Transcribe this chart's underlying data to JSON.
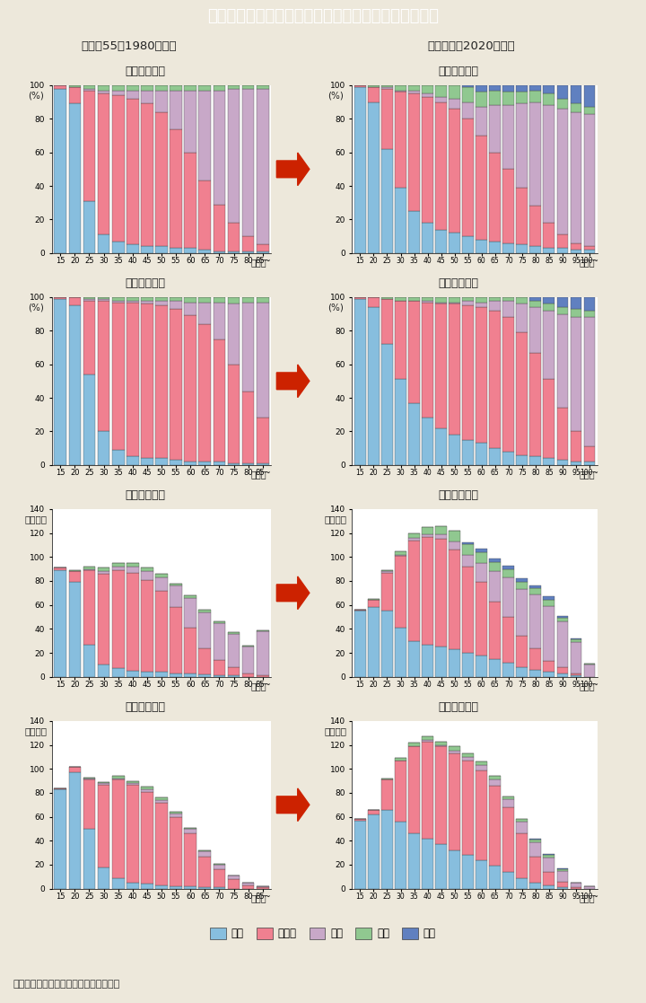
{
  "title": "特－３図　配偶関係別の人口構成比（男女別）の変化",
  "title_bg": "#00b8d0",
  "title_color": "white",
  "subtitle_left": "＜昭和55（1980）年＞",
  "subtitle_right": "＜令和２（2020）年＞",
  "bg_color": "#ede8db",
  "note": "（備考）総務省「国勢調査」より作成。",
  "colors": {
    "未婚": "#87BEDE",
    "有配偶": "#F08090",
    "死別": "#C8A8C8",
    "離別": "#90C890",
    "不詳": "#6080C0"
  },
  "ages_1980": [
    "15",
    "20",
    "25",
    "30",
    "35",
    "40",
    "45",
    "50",
    "55",
    "60",
    "65",
    "70",
    "75",
    "80",
    "85~"
  ],
  "ages_2020": [
    "15",
    "20",
    "25",
    "30",
    "35",
    "40",
    "45",
    "50",
    "55",
    "60",
    "65",
    "70",
    "75",
    "80",
    "85",
    "90",
    "95",
    "100~"
  ],
  "pct_female_1980": {
    "未婚": [
      98,
      89,
      31,
      11,
      7,
      5,
      4,
      4,
      3,
      3,
      2,
      1,
      1,
      1,
      1
    ],
    "有配偶": [
      2,
      10,
      66,
      84,
      87,
      87,
      85,
      80,
      71,
      57,
      41,
      28,
      17,
      9,
      4
    ],
    "死別": [
      0,
      0,
      1,
      2,
      3,
      5,
      8,
      13,
      23,
      37,
      54,
      68,
      80,
      88,
      93
    ],
    "離別": [
      0,
      1,
      2,
      3,
      3,
      3,
      3,
      3,
      3,
      3,
      3,
      3,
      2,
      2,
      2
    ],
    "不詳": [
      0,
      0,
      0,
      0,
      0,
      0,
      0,
      0,
      0,
      0,
      0,
      0,
      0,
      0,
      0
    ]
  },
  "pct_male_1980": {
    "未婚": [
      99,
      95,
      54,
      20,
      9,
      5,
      4,
      4,
      3,
      2,
      2,
      2,
      1,
      1,
      1
    ],
    "有配偶": [
      1,
      5,
      44,
      78,
      88,
      92,
      92,
      91,
      90,
      87,
      82,
      73,
      59,
      43,
      27
    ],
    "死別": [
      0,
      0,
      1,
      1,
      1,
      1,
      2,
      3,
      5,
      8,
      13,
      22,
      36,
      53,
      69
    ],
    "離別": [
      0,
      0,
      1,
      1,
      2,
      2,
      2,
      2,
      2,
      3,
      3,
      3,
      4,
      3,
      3
    ],
    "不詳": [
      0,
      0,
      0,
      0,
      0,
      0,
      0,
      0,
      0,
      0,
      0,
      0,
      0,
      0,
      0
    ]
  },
  "pct_female_2020": {
    "未婚": [
      99,
      90,
      62,
      39,
      25,
      18,
      14,
      12,
      10,
      8,
      7,
      6,
      5,
      4,
      3,
      3,
      2,
      2
    ],
    "有配偶": [
      1,
      9,
      36,
      57,
      70,
      75,
      76,
      74,
      70,
      62,
      53,
      44,
      34,
      24,
      15,
      8,
      4,
      2
    ],
    "死別": [
      0,
      0,
      1,
      1,
      2,
      2,
      3,
      6,
      10,
      17,
      28,
      38,
      50,
      62,
      70,
      75,
      78,
      79
    ],
    "離別": [
      0,
      1,
      1,
      3,
      3,
      5,
      7,
      8,
      9,
      9,
      9,
      8,
      7,
      7,
      7,
      6,
      5,
      4
    ],
    "不詳": [
      0,
      0,
      0,
      0,
      0,
      0,
      0,
      0,
      1,
      4,
      3,
      4,
      4,
      3,
      5,
      8,
      11,
      13
    ]
  },
  "pct_male_2020": {
    "未婚": [
      99,
      94,
      72,
      51,
      37,
      28,
      22,
      18,
      15,
      13,
      10,
      8,
      6,
      5,
      4,
      3,
      2,
      2
    ],
    "有配偶": [
      1,
      6,
      27,
      47,
      61,
      69,
      74,
      78,
      80,
      81,
      82,
      80,
      73,
      62,
      47,
      31,
      18,
      9
    ],
    "死別": [
      0,
      0,
      0,
      0,
      0,
      1,
      1,
      1,
      3,
      3,
      6,
      10,
      17,
      27,
      41,
      56,
      68,
      77
    ],
    "離別": [
      0,
      0,
      1,
      2,
      2,
      2,
      3,
      3,
      2,
      3,
      2,
      2,
      4,
      4,
      4,
      4,
      5,
      4
    ],
    "不詳": [
      0,
      0,
      0,
      0,
      0,
      0,
      0,
      0,
      0,
      0,
      0,
      0,
      0,
      2,
      4,
      6,
      7,
      8
    ]
  },
  "num_female_1980": {
    "未婚": [
      89,
      79,
      27,
      10,
      7,
      5,
      4,
      4,
      3,
      3,
      2,
      1,
      1,
      0,
      0
    ],
    "有配偶": [
      2,
      9,
      62,
      76,
      82,
      82,
      77,
      68,
      55,
      38,
      22,
      13,
      7,
      3,
      1
    ],
    "死別": [
      0,
      0,
      1,
      2,
      3,
      5,
      7,
      11,
      18,
      25,
      30,
      31,
      28,
      22,
      37
    ],
    "離別": [
      0,
      1,
      2,
      3,
      3,
      3,
      3,
      3,
      2,
      2,
      2,
      1,
      1,
      1,
      1
    ],
    "不詳": [
      0,
      0,
      0,
      0,
      0,
      0,
      0,
      0,
      0,
      0,
      0,
      0,
      0,
      0,
      0
    ]
  },
  "num_male_1980": {
    "未婚": [
      83,
      97,
      50,
      18,
      9,
      5,
      4,
      3,
      2,
      2,
      1,
      1,
      0,
      0,
      0
    ],
    "有配偶": [
      1,
      5,
      41,
      69,
      82,
      82,
      77,
      69,
      58,
      44,
      26,
      15,
      8,
      3,
      1
    ],
    "死別": [
      0,
      0,
      1,
      1,
      1,
      1,
      2,
      2,
      3,
      4,
      4,
      4,
      3,
      2,
      1
    ],
    "離別": [
      0,
      0,
      1,
      1,
      2,
      2,
      2,
      2,
      1,
      1,
      1,
      1,
      0,
      0,
      0
    ],
    "不詳": [
      0,
      0,
      0,
      0,
      0,
      0,
      0,
      0,
      0,
      0,
      0,
      0,
      0,
      0,
      0
    ]
  },
  "num_female_2020": {
    "未婚": [
      55,
      58,
      55,
      41,
      30,
      27,
      25,
      23,
      20,
      18,
      15,
      12,
      8,
      6,
      4,
      3,
      1,
      0
    ],
    "有配偶": [
      1,
      6,
      32,
      60,
      84,
      90,
      90,
      83,
      72,
      61,
      48,
      38,
      26,
      18,
      9,
      5,
      2,
      0
    ],
    "死別": [
      0,
      0,
      1,
      1,
      2,
      2,
      4,
      7,
      10,
      16,
      25,
      33,
      39,
      45,
      46,
      38,
      26,
      10
    ],
    "離別": [
      0,
      1,
      1,
      3,
      4,
      6,
      7,
      9,
      9,
      9,
      8,
      7,
      6,
      5,
      5,
      3,
      2,
      1
    ],
    "不詳": [
      0,
      0,
      0,
      0,
      0,
      0,
      0,
      0,
      1,
      3,
      3,
      3,
      3,
      2,
      3,
      2,
      1,
      0
    ]
  },
  "num_male_2020": {
    "未婚": [
      57,
      62,
      66,
      56,
      46,
      42,
      37,
      32,
      28,
      24,
      19,
      14,
      9,
      5,
      3,
      1,
      0,
      0
    ],
    "有配偶": [
      1,
      4,
      25,
      51,
      73,
      81,
      82,
      81,
      79,
      75,
      67,
      54,
      37,
      22,
      11,
      5,
      1,
      0
    ],
    "死別": [
      0,
      0,
      0,
      0,
      0,
      1,
      1,
      2,
      3,
      4,
      5,
      7,
      10,
      12,
      12,
      9,
      4,
      2
    ],
    "離別": [
      0,
      0,
      1,
      2,
      3,
      3,
      3,
      4,
      3,
      3,
      3,
      2,
      2,
      2,
      2,
      1,
      0,
      0
    ],
    "不詳": [
      0,
      0,
      0,
      0,
      0,
      0,
      0,
      0,
      0,
      0,
      0,
      0,
      0,
      1,
      1,
      1,
      0,
      0
    ]
  },
  "ylim_pct": [
    0,
    100
  ],
  "ylim_num": [
    0,
    140
  ],
  "ylabel_pct": "(%)",
  "ylabel_num": "（万人）"
}
